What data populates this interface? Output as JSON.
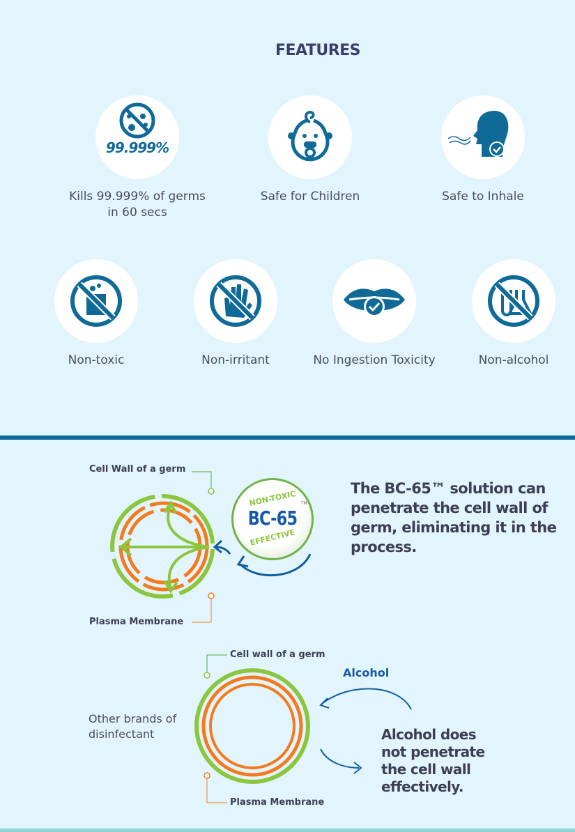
{
  "heading": "FEATURES",
  "colors": {
    "background": "#e3f5fc",
    "icon_blue": "#0f6a97",
    "wall_green": "#8cc63f",
    "membrane_orange": "#f47a20",
    "arrow_blue": "#0f5fa0"
  },
  "features_row1": [
    {
      "icon": "no-germs-icon",
      "badge": "99.999%",
      "label": "Kills 99.999% of germs in 60 secs"
    },
    {
      "icon": "baby-icon",
      "label": "Safe for Children"
    },
    {
      "icon": "inhale-check-icon",
      "label": "Safe to Inhale"
    }
  ],
  "features_row2": [
    {
      "icon": "no-toxic-beaker-icon",
      "label": "Non-toxic"
    },
    {
      "icon": "no-irritant-hand-icon",
      "label": "Non-irritant"
    },
    {
      "icon": "lips-check-icon",
      "label": "No Ingestion Toxicity"
    },
    {
      "icon": "no-alcohol-flask-icon",
      "label": "Non-alcohol"
    }
  ],
  "diagram1": {
    "cell_wall_label": "Cell Wall of a germ",
    "plasma_label": "Plasma Membrane",
    "badge_top": "NON-TOXIC",
    "badge_main": "BC-65",
    "badge_tm": "TM",
    "badge_bottom": "EFFECTIVE",
    "description": "The BC-65™ solution can penetrate the cell wall of germ, eliminating it in the process."
  },
  "diagram2": {
    "cell_wall_label": "Cell wall of a germ",
    "plasma_label": "Plasma Membrane",
    "side_label": "Other brands of disinfectant",
    "alcohol_label": "Alcohol",
    "description": "Alcohol does not penetrate the cell wall effectively."
  }
}
